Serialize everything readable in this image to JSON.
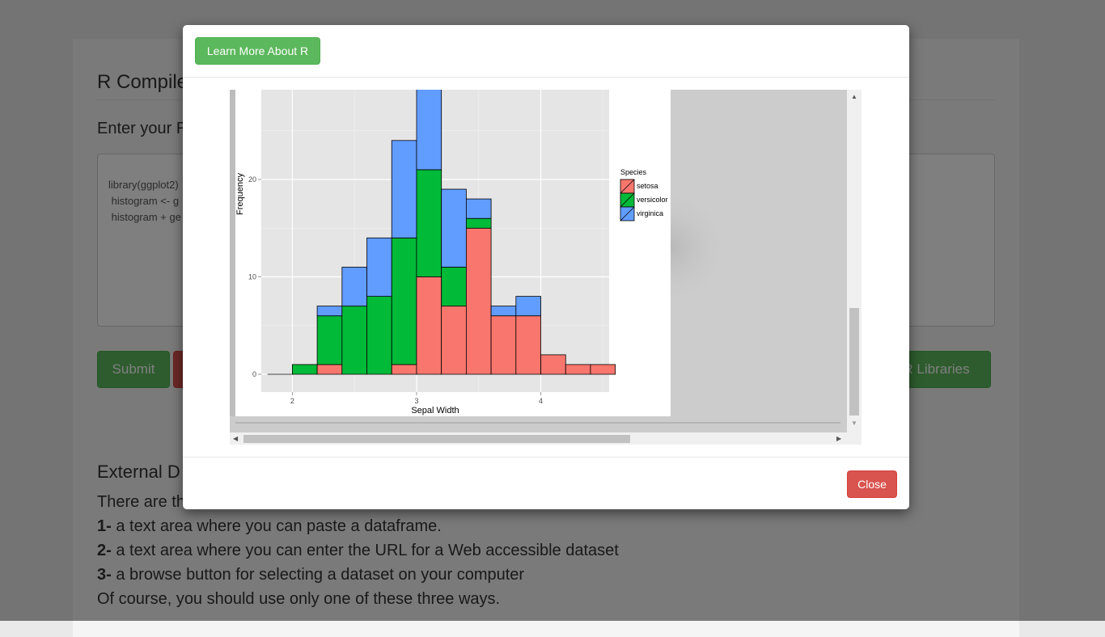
{
  "page": {
    "title": "R Compile",
    "enter_label": "Enter your R",
    "code_lines": [
      "library(ggplot2)",
      " histogram <- g",
      " histogram + ge"
    ],
    "buttons": {
      "submit": "Submit",
      "libraries": "R Libraries"
    },
    "external_title": "External D",
    "external_intro": "There are th",
    "ways": [
      {
        "num": "1-",
        "text": " a text area where you can paste a dataframe."
      },
      {
        "num": "2-",
        "text": " a text area where you can enter the URL for a Web accessible dataset"
      },
      {
        "num": "3-",
        "text": " a browse button for selecting a dataset on your computer"
      }
    ],
    "closing": "Of course, you should use only one of these three ways."
  },
  "modal": {
    "learn_more": "Learn More About R",
    "close": "Close"
  },
  "colors": {
    "setosa": "#F8766D",
    "versicolor": "#00BA38",
    "virginica": "#619CFF",
    "green_button": "#5cb85c",
    "red_button": "#d9534f"
  },
  "chart_data": {
    "type": "bar",
    "subtype": "stacked-histogram",
    "xlabel": "Sepal Width",
    "ylabel": "Frequency",
    "x_ticks": [
      2,
      3,
      4
    ],
    "y_ticks": [
      0,
      10,
      20
    ],
    "xlim": [
      1.75,
      4.55
    ],
    "ylim": [
      0,
      30
    ],
    "bin_width": 0.2,
    "bin_starts": [
      1.8,
      2.0,
      2.2,
      2.4,
      2.6,
      2.8,
      3.0,
      3.2,
      3.4,
      3.6,
      3.8,
      4.0,
      4.2,
      4.4
    ],
    "series": [
      {
        "name": "setosa",
        "values": [
          0,
          0,
          1,
          0,
          0,
          1,
          10,
          7,
          15,
          6,
          6,
          2,
          1,
          1
        ]
      },
      {
        "name": "versicolor",
        "values": [
          0,
          1,
          5,
          7,
          8,
          13,
          11,
          4,
          1,
          0,
          0,
          0,
          0,
          0
        ]
      },
      {
        "name": "virginica",
        "values": [
          0,
          0,
          1,
          4,
          6,
          10,
          14,
          8,
          2,
          1,
          2,
          0,
          0,
          0
        ]
      }
    ],
    "legend_title": "Species",
    "legend_position": "right",
    "grid": true
  }
}
